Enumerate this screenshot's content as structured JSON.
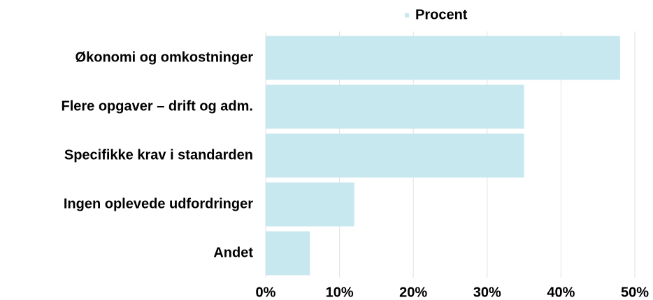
{
  "chart_data": {
    "type": "barh",
    "categories": [
      "Økonomi og omkostninger",
      "Flere opgaver – drift og adm.",
      "Specifikke krav i standarden",
      "Ingen oplevede udfordringer",
      "Andet"
    ],
    "series": [
      {
        "name": "Procent",
        "color": "#c8e8f0",
        "values": [
          48,
          35,
          35,
          12,
          6
        ]
      }
    ],
    "xlim": [
      0,
      50
    ],
    "xticks": [
      {
        "value": 0,
        "label": "0%"
      },
      {
        "value": 10,
        "label": "10%"
      },
      {
        "value": 20,
        "label": "20%"
      },
      {
        "value": 30,
        "label": "30%"
      },
      {
        "value": 40,
        "label": "40%"
      },
      {
        "value": 50,
        "label": "50%"
      }
    ],
    "grid": true,
    "legend": "top"
  }
}
